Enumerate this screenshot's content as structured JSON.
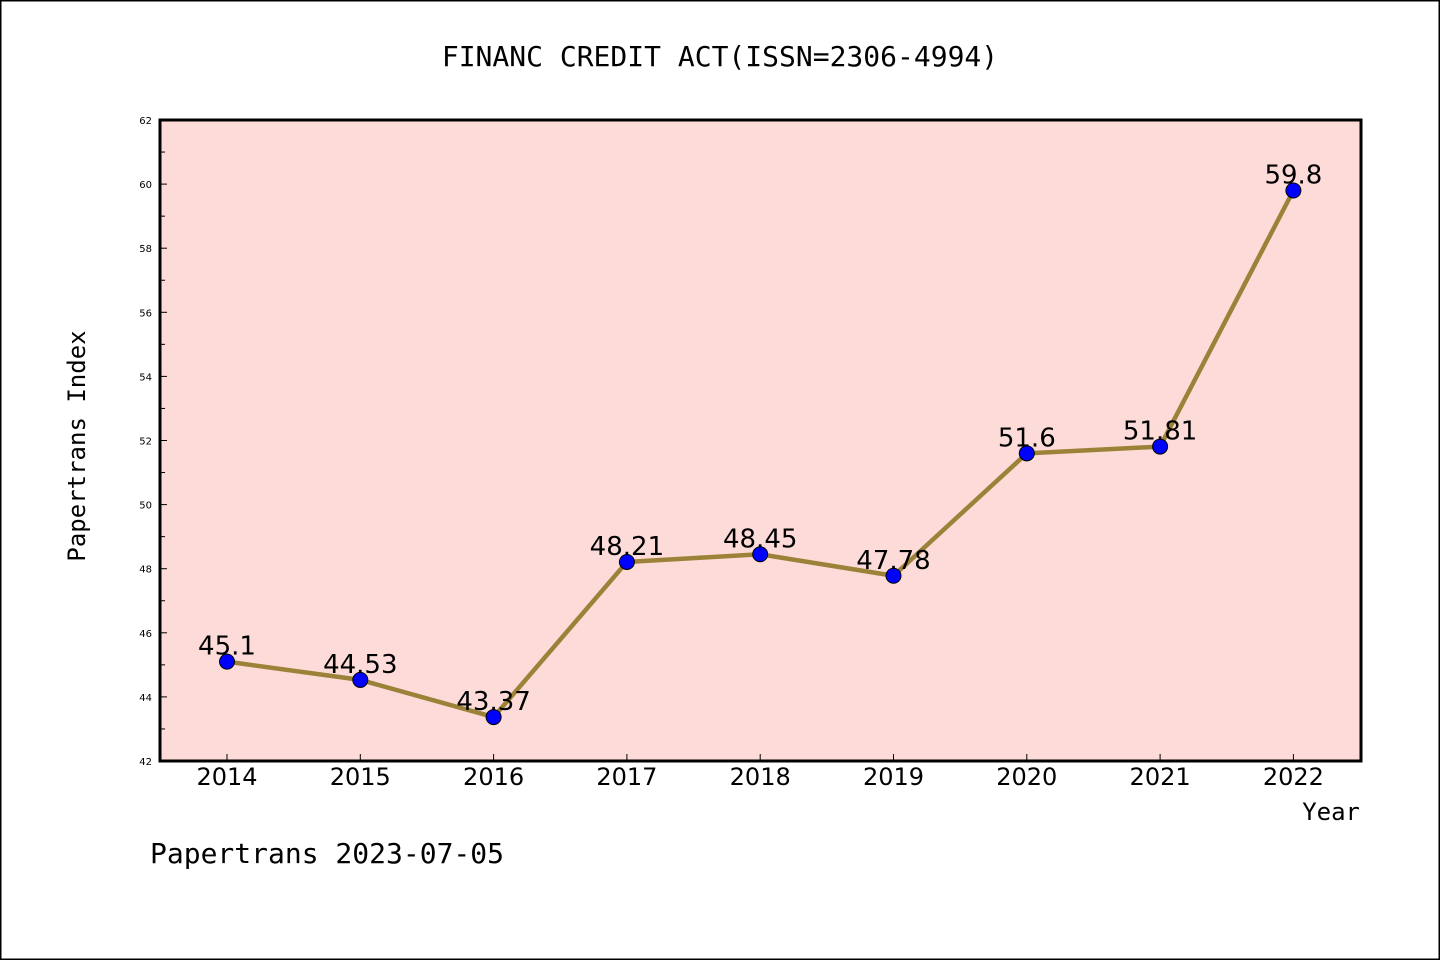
{
  "chart_data": {
    "type": "line",
    "title": "FINANC CREDIT ACT(ISSN=2306-4994)",
    "xlabel": "Year",
    "ylabel": "Papertrans Index",
    "footer": "Papertrans 2023-07-05",
    "categories": [
      "2014",
      "2015",
      "2016",
      "2017",
      "2018",
      "2019",
      "2020",
      "2021",
      "2022"
    ],
    "series": [
      {
        "values": [
          45.1,
          44.53,
          43.37,
          48.21,
          48.45,
          47.78,
          51.6,
          51.81,
          59.8
        ],
        "labels": [
          "45.1",
          "44.53",
          "43.37",
          "48.21",
          "48.45",
          "47.78",
          "51.6",
          "51.81",
          "59.8"
        ]
      }
    ],
    "ylim": [
      42,
      62
    ],
    "yticks": [
      42,
      44,
      46,
      48,
      50,
      52,
      54,
      56,
      58,
      60,
      62
    ],
    "grid": false,
    "colors": {
      "background": "#fddbd8",
      "line": "#9c8238",
      "marker": "#0000ff"
    }
  }
}
